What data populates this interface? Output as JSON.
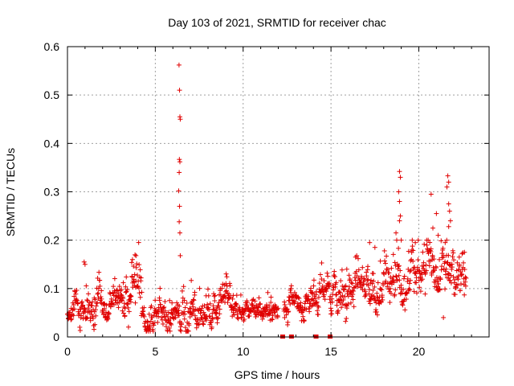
{
  "chart_data": {
    "type": "scatter",
    "title": "Day 103 of 2021, SRMTID for receiver chac",
    "xlabel": "GPS time / hours",
    "ylabel": "SRMTID / TECUs",
    "xlim": [
      0,
      24
    ],
    "ylim": [
      0,
      0.6
    ],
    "xticks": [
      0,
      5,
      10,
      15,
      20
    ],
    "xtick_labels": [
      "0",
      "5",
      "10",
      "15",
      "20"
    ],
    "yticks": [
      0,
      0.1,
      0.2,
      0.3,
      0.4,
      0.5,
      0.6
    ],
    "ytick_labels": [
      "0",
      "0.1",
      "0.2",
      "0.3",
      "0.4",
      "0.5",
      "0.6"
    ],
    "grid": true,
    "marker": "+",
    "color": "#e00000",
    "series": [
      {
        "name": "SRMTID",
        "segments": [
          {
            "x0": 0.0,
            "x1": 0.3,
            "base": 0.04,
            "amp": 0.02
          },
          {
            "x0": 0.3,
            "x1": 3.3,
            "base": 0.065,
            "amp": 0.035
          },
          {
            "x0": 3.3,
            "x1": 4.2,
            "base": 0.095,
            "amp": 0.05
          },
          {
            "x0": 4.2,
            "x1": 6.2,
            "base": 0.055,
            "amp": 0.035
          },
          {
            "x0": 6.2,
            "x1": 7.5,
            "base": 0.06,
            "amp": 0.04
          },
          {
            "x0": 7.5,
            "x1": 9.5,
            "base": 0.06,
            "amp": 0.035
          },
          {
            "x0": 9.5,
            "x1": 12.0,
            "base": 0.055,
            "amp": 0.025
          },
          {
            "x0": 12.3,
            "x1": 14.3,
            "base": 0.065,
            "amp": 0.03
          },
          {
            "x0": 14.3,
            "x1": 16.0,
            "base": 0.085,
            "amp": 0.04
          },
          {
            "x0": 16.0,
            "x1": 18.0,
            "base": 0.1,
            "amp": 0.045
          },
          {
            "x0": 18.0,
            "x1": 20.0,
            "base": 0.115,
            "amp": 0.05
          },
          {
            "x0": 20.0,
            "x1": 22.0,
            "base": 0.12,
            "amp": 0.055
          },
          {
            "x0": 22.0,
            "x1": 22.7,
            "base": 0.11,
            "amp": 0.05
          }
        ],
        "points_per_hour": 55,
        "spikes": [
          {
            "x": 6.35,
            "y": 0.562
          },
          {
            "x": 6.38,
            "y": 0.51
          },
          {
            "x": 6.4,
            "y": 0.455
          },
          {
            "x": 6.42,
            "y": 0.45
          },
          {
            "x": 6.37,
            "y": 0.367
          },
          {
            "x": 6.4,
            "y": 0.362
          },
          {
            "x": 6.36,
            "y": 0.34
          },
          {
            "x": 6.33,
            "y": 0.302
          },
          {
            "x": 6.38,
            "y": 0.27
          },
          {
            "x": 6.36,
            "y": 0.238
          },
          {
            "x": 6.4,
            "y": 0.215
          },
          {
            "x": 6.42,
            "y": 0.168
          },
          {
            "x": 0.95,
            "y": 0.155
          },
          {
            "x": 1.0,
            "y": 0.15
          },
          {
            "x": 3.9,
            "y": 0.168
          },
          {
            "x": 3.7,
            "y": 0.16
          },
          {
            "x": 17.2,
            "y": 0.195
          },
          {
            "x": 17.5,
            "y": 0.185
          },
          {
            "x": 18.9,
            "y": 0.342
          },
          {
            "x": 18.95,
            "y": 0.33
          },
          {
            "x": 18.85,
            "y": 0.3
          },
          {
            "x": 18.9,
            "y": 0.28
          },
          {
            "x": 18.95,
            "y": 0.25
          },
          {
            "x": 18.9,
            "y": 0.24
          },
          {
            "x": 18.7,
            "y": 0.215
          },
          {
            "x": 19.0,
            "y": 0.2
          },
          {
            "x": 19.8,
            "y": 0.195
          },
          {
            "x": 20.7,
            "y": 0.295
          },
          {
            "x": 21.0,
            "y": 0.255
          },
          {
            "x": 20.8,
            "y": 0.225
          },
          {
            "x": 21.1,
            "y": 0.21
          },
          {
            "x": 21.5,
            "y": 0.195
          },
          {
            "x": 21.65,
            "y": 0.333
          },
          {
            "x": 21.7,
            "y": 0.32
          },
          {
            "x": 21.6,
            "y": 0.31
          },
          {
            "x": 21.7,
            "y": 0.275
          },
          {
            "x": 21.75,
            "y": 0.26
          },
          {
            "x": 21.8,
            "y": 0.24
          },
          {
            "x": 21.7,
            "y": 0.228
          },
          {
            "x": 22.6,
            "y": 0.175
          },
          {
            "x": 22.3,
            "y": 0.165
          },
          {
            "x": 15.9,
            "y": 0.14
          },
          {
            "x": 16.4,
            "y": 0.165
          },
          {
            "x": 21.4,
            "y": 0.04
          }
        ],
        "zero_points": [
          12.25,
          12.75,
          14.15,
          14.95
        ]
      }
    ]
  }
}
